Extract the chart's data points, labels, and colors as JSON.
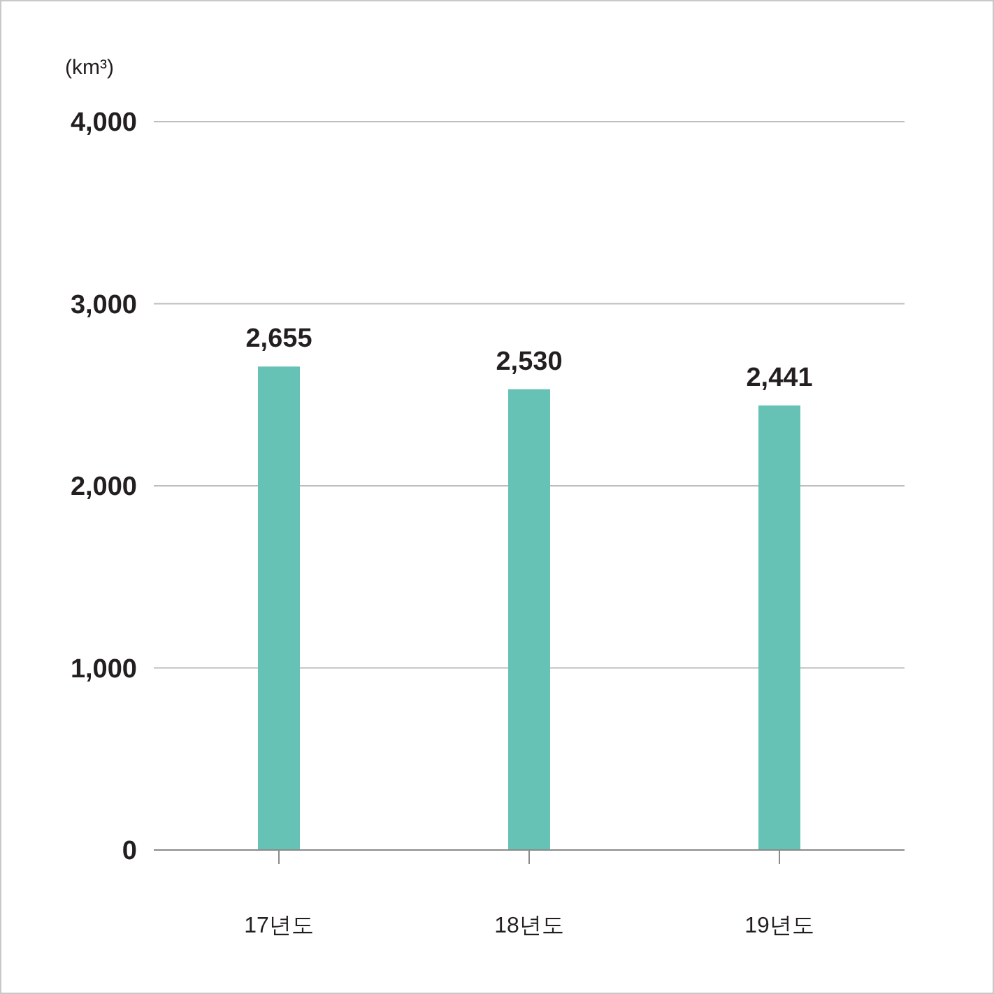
{
  "chart_data": {
    "type": "bar",
    "ylabel": "(km³)",
    "categories": [
      "17년도",
      "18년도",
      "19년도"
    ],
    "values": [
      2655,
      2530,
      2441
    ],
    "color": "#66c2b5",
    "ylim": [
      0,
      4000
    ],
    "yticks": [
      {
        "value": 0,
        "label": "0"
      },
      {
        "value": 1000,
        "label": "1,000"
      },
      {
        "value": 2000,
        "label": "2,000"
      },
      {
        "value": 3000,
        "label": "3,000"
      },
      {
        "value": 4000,
        "label": "4,000"
      }
    ],
    "grid": "y",
    "value_labels": [
      "2,655",
      "2,530",
      "2,441"
    ]
  }
}
